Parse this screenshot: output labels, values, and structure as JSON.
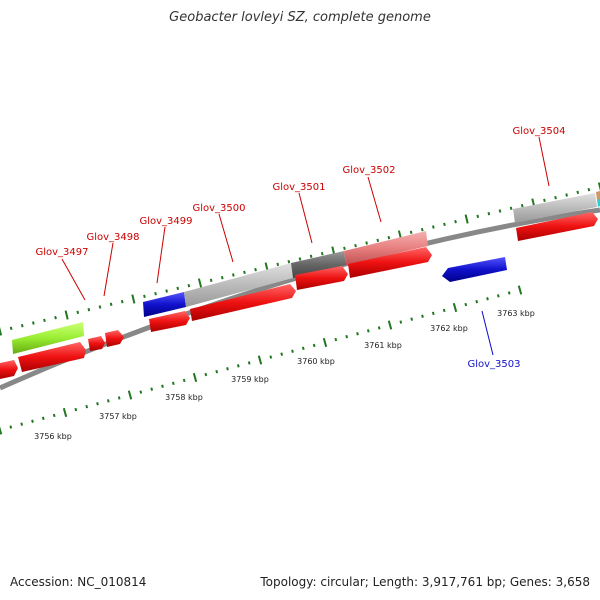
{
  "title": "Geobacter lovleyi SZ, complete genome",
  "footer": {
    "accession": "Accession: NC_010814",
    "summary": "Topology: circular; Length: 3,917,761 bp; Genes: 3,658"
  },
  "colors": {
    "cds_forward": "#ee1111",
    "cds_reverse": "#1111cc",
    "label_forward": "#cc0000",
    "label_reverse": "#1111cc",
    "backbone": "#888888",
    "tick": "#227722",
    "cog_grey": "#bbbbbb",
    "cog_dark": "#666666",
    "cog_pink": "#e88080",
    "cog_green": "#99ee33"
  },
  "gene_labels": [
    {
      "name": "Glov_3497",
      "strand": "forward"
    },
    {
      "name": "Glov_3498",
      "strand": "forward"
    },
    {
      "name": "Glov_3499",
      "strand": "forward"
    },
    {
      "name": "Glov_3500",
      "strand": "forward"
    },
    {
      "name": "Glov_3501",
      "strand": "forward"
    },
    {
      "name": "Glov_3502",
      "strand": "forward"
    },
    {
      "name": "Glov_3503",
      "strand": "reverse"
    },
    {
      "name": "Glov_3504",
      "strand": "forward"
    }
  ],
  "kbp_labels": [
    "3756 kbp",
    "3757 kbp",
    "3758 kbp",
    "3759 kbp",
    "3760 kbp",
    "3761 kbp",
    "3762 kbp",
    "3763 kbp"
  ]
}
